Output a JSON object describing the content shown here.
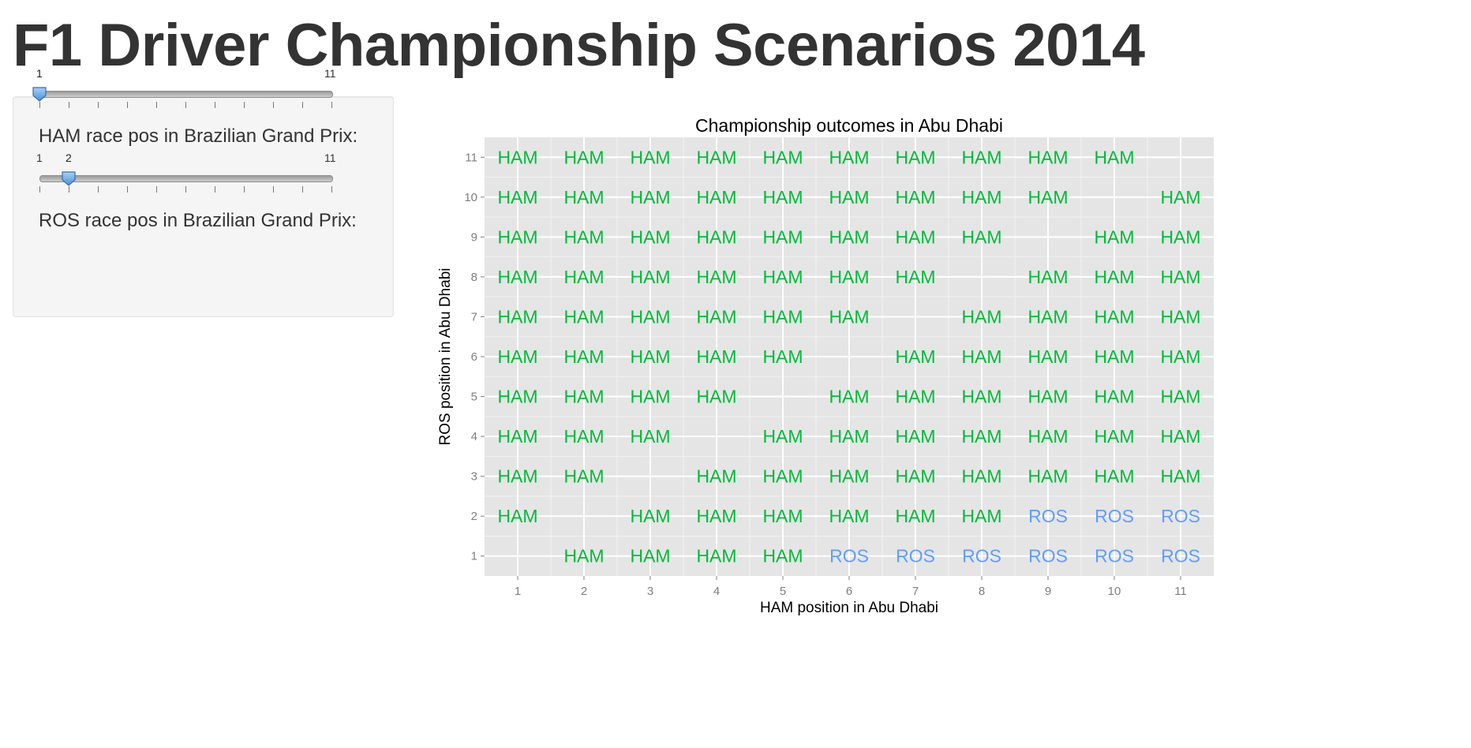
{
  "page": {
    "title": "F1 Driver Championship Scenarios 2014"
  },
  "sliders": [
    {
      "label": "HAM race pos in Brazilian Grand Prix:",
      "min": 1,
      "max": 11,
      "value": 1,
      "min_label": "1",
      "max_label": "11",
      "value_label": "1"
    },
    {
      "label": "ROS race pos in Brazilian Grand Prix:",
      "min": 1,
      "max": 11,
      "value": 2,
      "min_label": "1",
      "max_label": "11",
      "value_label": "2"
    }
  ],
  "colors": {
    "HAM": "#00ba38",
    "ROS": "#619cff",
    "panel_bg": "#e5e5e5",
    "grid": "#ffffff"
  },
  "chart_data": {
    "type": "table",
    "title": "Championship outcomes in Abu Dhabi",
    "xlabel": "HAM position in Abu Dhabi",
    "ylabel": "ROS position in Abu Dhabi",
    "x": [
      1,
      2,
      3,
      4,
      5,
      6,
      7,
      8,
      9,
      10,
      11
    ],
    "y": [
      1,
      2,
      3,
      4,
      5,
      6,
      7,
      8,
      9,
      10,
      11
    ],
    "xlim": [
      0.5,
      11.5
    ],
    "ylim": [
      0.5,
      11.5
    ],
    "grid": true,
    "rows": [
      {
        "ros": 11,
        "outcomes": [
          "HAM",
          "HAM",
          "HAM",
          "HAM",
          "HAM",
          "HAM",
          "HAM",
          "HAM",
          "HAM",
          "HAM",
          ""
        ]
      },
      {
        "ros": 10,
        "outcomes": [
          "HAM",
          "HAM",
          "HAM",
          "HAM",
          "HAM",
          "HAM",
          "HAM",
          "HAM",
          "HAM",
          "",
          "HAM"
        ]
      },
      {
        "ros": 9,
        "outcomes": [
          "HAM",
          "HAM",
          "HAM",
          "HAM",
          "HAM",
          "HAM",
          "HAM",
          "HAM",
          "",
          "HAM",
          "HAM"
        ]
      },
      {
        "ros": 8,
        "outcomes": [
          "HAM",
          "HAM",
          "HAM",
          "HAM",
          "HAM",
          "HAM",
          "HAM",
          "",
          "HAM",
          "HAM",
          "HAM"
        ]
      },
      {
        "ros": 7,
        "outcomes": [
          "HAM",
          "HAM",
          "HAM",
          "HAM",
          "HAM",
          "HAM",
          "",
          "HAM",
          "HAM",
          "HAM",
          "HAM"
        ]
      },
      {
        "ros": 6,
        "outcomes": [
          "HAM",
          "HAM",
          "HAM",
          "HAM",
          "HAM",
          "",
          "HAM",
          "HAM",
          "HAM",
          "HAM",
          "HAM"
        ]
      },
      {
        "ros": 5,
        "outcomes": [
          "HAM",
          "HAM",
          "HAM",
          "HAM",
          "",
          "HAM",
          "HAM",
          "HAM",
          "HAM",
          "HAM",
          "HAM"
        ]
      },
      {
        "ros": 4,
        "outcomes": [
          "HAM",
          "HAM",
          "HAM",
          "",
          "HAM",
          "HAM",
          "HAM",
          "HAM",
          "HAM",
          "HAM",
          "HAM"
        ]
      },
      {
        "ros": 3,
        "outcomes": [
          "HAM",
          "HAM",
          "",
          "HAM",
          "HAM",
          "HAM",
          "HAM",
          "HAM",
          "HAM",
          "HAM",
          "HAM"
        ]
      },
      {
        "ros": 2,
        "outcomes": [
          "HAM",
          "",
          "HAM",
          "HAM",
          "HAM",
          "HAM",
          "HAM",
          "HAM",
          "ROS",
          "ROS",
          "ROS"
        ]
      },
      {
        "ros": 1,
        "outcomes": [
          "",
          "HAM",
          "HAM",
          "HAM",
          "HAM",
          "ROS",
          "ROS",
          "ROS",
          "ROS",
          "ROS",
          "ROS"
        ]
      }
    ]
  }
}
